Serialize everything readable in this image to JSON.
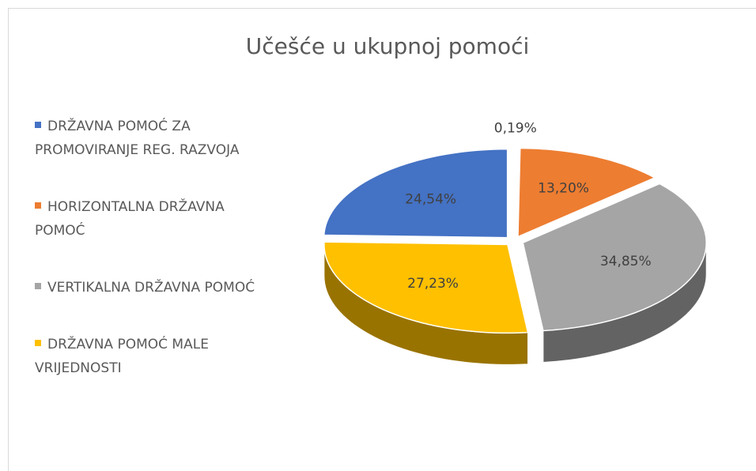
{
  "chart_data": {
    "type": "pie3d",
    "title": "Učešće u ukupnoj pomoći",
    "categories": [
      "DRŽAVNA POMOĆ ZA PROMOVIRANJE REG. RAZVOJA",
      null,
      "HORIZONTALNA DRŽAVNA POMOĆ",
      "VERTIKALNA DRŽAVNA POMOĆ",
      "DRŽAVNA POMOĆ MALE VRIJEDNOSTI"
    ],
    "values": [
      24.54,
      0.19,
      13.2,
      34.85,
      27.23
    ],
    "value_labels": [
      "24,54%",
      "0,19%",
      "13,20%",
      "34,85%",
      "27,23%"
    ],
    "colors": [
      "#4472c4",
      "#ffffff",
      "#ed7d31",
      "#a5a5a5",
      "#ffc000"
    ],
    "legend": "left"
  }
}
